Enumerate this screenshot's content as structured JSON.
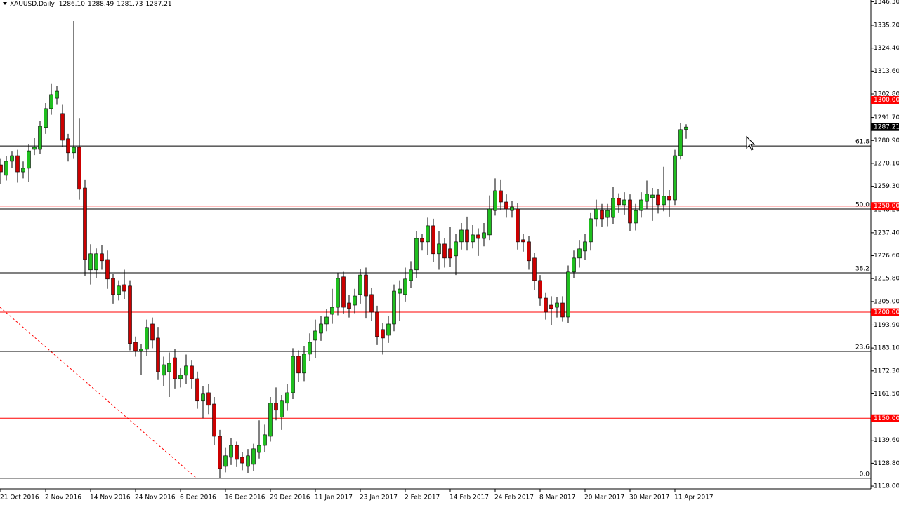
{
  "chart_data": {
    "type": "candlestick",
    "title": "XAUUSD,Daily",
    "last_quote": {
      "values": [
        1286.1,
        1288.49,
        1281.73,
        1287.21
      ],
      "value_labels": [
        "1286.10",
        "1288.49",
        "1281.73",
        "1287.21"
      ]
    },
    "categories": [
      "21 Oct 2016",
      null,
      null,
      null,
      null,
      null,
      null,
      null,
      "2 Nov 2016",
      null,
      null,
      null,
      null,
      null,
      null,
      null,
      "14 Nov 2016",
      null,
      null,
      null,
      null,
      null,
      null,
      null,
      "24 Nov 2016",
      null,
      null,
      null,
      null,
      null,
      null,
      null,
      "6 Dec 2016",
      null,
      null,
      null,
      null,
      null,
      null,
      null,
      "16 Dec 2016",
      null,
      null,
      null,
      null,
      null,
      null,
      null,
      "29 Dec 2016",
      null,
      null,
      null,
      null,
      null,
      null,
      null,
      "11 Jan 2017",
      null,
      null,
      null,
      null,
      null,
      null,
      null,
      "23 Jan 2017",
      null,
      null,
      null,
      null,
      null,
      null,
      null,
      "2 Feb 2017",
      null,
      null,
      null,
      null,
      null,
      null,
      null,
      "14 Feb 2017",
      null,
      null,
      null,
      null,
      null,
      null,
      null,
      "24 Feb 2017",
      null,
      null,
      null,
      null,
      null,
      null,
      null,
      "8 Mar 2017",
      null,
      null,
      null,
      null,
      null,
      null,
      null,
      "20 Mar 2017",
      null,
      null,
      null,
      null,
      null,
      null,
      null,
      "30 Mar 2017",
      null,
      null,
      null,
      null,
      null,
      null,
      null,
      "11 Apr 2017",
      null,
      null
    ],
    "open": [
      1269.4,
      1264.5,
      1271.1,
      1273.7,
      1266.1,
      1267.8,
      1276.7,
      1276.7,
      1287.0,
      1295.9,
      1300.8,
      1293.6,
      1281.7,
      1275.1,
      1277.7,
      1258.5,
      1219.9,
      1219.9,
      1227.5,
      1224.8,
      1215.9,
      1208.3,
      1212.9,
      1212.3,
      1185.8,
      1181.8,
      1182.5,
      1194.4,
      1187.8,
      1170.3,
      1171.9,
      1178.5,
      1168.6,
      1170.3,
      1174.6,
      1168.6,
      1158.1,
      1162.0,
      1156.7,
      1141.5,
      1127.3,
      1131.6,
      1137.2,
      1131.6,
      1127.3,
      1128.3,
      1133.9,
      1137.2,
      1141.5,
      1157.1,
      1150.5,
      1157.1,
      1162.0,
      1179.2,
      1171.3,
      1180.2,
      1186.8,
      1190.1,
      1194.4,
      1199.0,
      1202.3,
      1216.6,
      1204.3,
      1203.3,
      1208.3,
      1217.5,
      1208.3,
      1200.0,
      1191.8,
      1189.1,
      1194.4,
      1208.9,
      1208.3,
      1214.9,
      1219.9,
      1234.7,
      1233.1,
      1240.7,
      1227.5,
      1232.1,
      1229.8,
      1226.5,
      1233.1,
      1238.7,
      1233.1,
      1236.4,
      1234.7,
      1236.4,
      1247.9,
      1257.2,
      1251.9,
      1247.9,
      1248.6,
      1234.1,
      1233.1,
      1225.5,
      1214.9,
      1206.6,
      1203.3,
      1202.3,
      1204.3,
      1197.7,
      1218.9,
      1225.5,
      1228.8,
      1233.1,
      1244.0,
      1247.9,
      1244.6,
      1244.6,
      1253.6,
      1250.6,
      1252.9,
      1242.0,
      1247.9,
      1252.2,
      1253.9,
      1255.2,
      1250.6,
      1254.6,
      1252.9,
      1273.7,
      1286.1
    ],
    "high": [
      1272.5,
      1273.5,
      1276.0,
      1276.5,
      1271.0,
      1279.0,
      1282.0,
      1290.0,
      1298.5,
      1307.5,
      1306.5,
      1298.0,
      1284.0,
      1337.2,
      1291.5,
      1262.5,
      1232.0,
      1230.0,
      1231.5,
      1229.0,
      1218.0,
      1215.0,
      1220.0,
      1215.0,
      1188.5,
      1185.0,
      1196.5,
      1197.5,
      1193.0,
      1179.0,
      1181.0,
      1182.5,
      1173.5,
      1180.0,
      1177.5,
      1172.0,
      1165.0,
      1166.0,
      1160.0,
      1144.5,
      1136.0,
      1140.5,
      1139.0,
      1134.0,
      1135.5,
      1138.0,
      1149.0,
      1147.0,
      1160.0,
      1164.5,
      1161.0,
      1166.0,
      1183.0,
      1182.0,
      1184.0,
      1190.0,
      1196.5,
      1198.0,
      1201.5,
      1211.0,
      1218.5,
      1219.0,
      1208.0,
      1211.0,
      1220.5,
      1221.0,
      1211.5,
      1203.0,
      1195.0,
      1198.0,
      1213.0,
      1215.0,
      1221.0,
      1224.0,
      1238.0,
      1237.0,
      1244.5,
      1244.0,
      1238.0,
      1235.0,
      1240.0,
      1237.0,
      1242.0,
      1245.0,
      1241.0,
      1239.5,
      1242.0,
      1255.0,
      1263.0,
      1262.5,
      1255.5,
      1252.5,
      1251.5,
      1237.0,
      1236.0,
      1228.0,
      1217.5,
      1209.0,
      1207.5,
      1207.0,
      1207.5,
      1222.0,
      1229.0,
      1234.0,
      1237.0,
      1247.0,
      1253.0,
      1251.0,
      1251.0,
      1259.0,
      1256.0,
      1256.5,
      1255.5,
      1251.0,
      1256.5,
      1262.0,
      1258.5,
      1258.0,
      1268.5,
      1257.5,
      1276.5,
      1289.0,
      1288.49
    ],
    "low": [
      1260.5,
      1262.0,
      1268.0,
      1261.0,
      1263.0,
      1261.5,
      1274.0,
      1274.5,
      1284.0,
      1293.0,
      1298.0,
      1278.0,
      1271.0,
      1272.5,
      1253.0,
      1217.0,
      1213.0,
      1216.0,
      1220.0,
      1211.0,
      1204.0,
      1205.5,
      1206.0,
      1182.0,
      1179.0,
      1170.5,
      1179.5,
      1183.0,
      1168.0,
      1165.0,
      1160.0,
      1164.0,
      1164.5,
      1166.0,
      1164.0,
      1154.5,
      1150.0,
      1152.0,
      1137.5,
      1121.7,
      1124.5,
      1128.0,
      1127.0,
      1125.5,
      1124.0,
      1125.0,
      1131.0,
      1134.0,
      1139.0,
      1149.0,
      1144.5,
      1153.5,
      1159.0,
      1167.0,
      1167.5,
      1177.0,
      1178.5,
      1186.5,
      1191.0,
      1194.5,
      1198.5,
      1199.0,
      1197.5,
      1199.5,
      1204.0,
      1197.0,
      1196.0,
      1184.5,
      1180.0,
      1185.5,
      1191.0,
      1196.0,
      1205.0,
      1211.5,
      1216.0,
      1229.0,
      1227.0,
      1223.5,
      1220.0,
      1221.0,
      1221.5,
      1217.5,
      1229.5,
      1229.0,
      1230.0,
      1226.5,
      1231.0,
      1234.0,
      1245.5,
      1248.0,
      1244.5,
      1244.5,
      1229.5,
      1228.5,
      1220.0,
      1210.5,
      1203.0,
      1196.5,
      1194.0,
      1197.5,
      1195.5,
      1195.0,
      1216.0,
      1221.0,
      1224.5,
      1229.0,
      1240.5,
      1240.0,
      1240.5,
      1241.5,
      1247.0,
      1246.0,
      1238.0,
      1238.5,
      1244.5,
      1248.5,
      1243.0,
      1246.5,
      1247.5,
      1245.0,
      1250.5,
      1272.0,
      1281.73
    ],
    "close": [
      1266.1,
      1271.1,
      1273.7,
      1266.1,
      1267.8,
      1276.0,
      1277.7,
      1287.6,
      1295.9,
      1302.5,
      1304.1,
      1281.0,
      1275.1,
      1277.7,
      1257.9,
      1224.8,
      1227.5,
      1227.5,
      1224.2,
      1215.6,
      1208.3,
      1212.3,
      1209.9,
      1185.2,
      1181.8,
      1182.5,
      1192.8,
      1186.8,
      1171.9,
      1175.2,
      1175.9,
      1168.6,
      1170.3,
      1174.6,
      1168.6,
      1158.1,
      1161.4,
      1156.1,
      1141.5,
      1126.3,
      1132.3,
      1137.2,
      1130.6,
      1128.9,
      1132.3,
      1135.6,
      1137.2,
      1142.2,
      1157.1,
      1153.8,
      1158.1,
      1162.0,
      1179.2,
      1171.3,
      1180.2,
      1185.8,
      1191.1,
      1194.4,
      1197.7,
      1202.3,
      1215.9,
      1202.3,
      1201.7,
      1207.6,
      1217.5,
      1207.6,
      1200.0,
      1188.5,
      1187.8,
      1194.4,
      1209.9,
      1210.9,
      1215.6,
      1219.9,
      1234.7,
      1233.1,
      1240.7,
      1227.5,
      1232.1,
      1225.5,
      1225.5,
      1233.1,
      1238.7,
      1233.1,
      1236.4,
      1234.7,
      1237.4,
      1248.6,
      1257.2,
      1251.9,
      1248.6,
      1249.6,
      1233.1,
      1233.1,
      1224.2,
      1214.9,
      1206.6,
      1200.0,
      1201.7,
      1204.3,
      1197.7,
      1218.9,
      1225.5,
      1229.8,
      1233.1,
      1244.0,
      1248.6,
      1244.0,
      1247.9,
      1253.6,
      1250.6,
      1252.9,
      1242.0,
      1247.9,
      1252.9,
      1255.6,
      1255.2,
      1250.6,
      1254.6,
      1252.9,
      1273.7,
      1286.0,
      1287.21
    ],
    "up_color": "#1fbf1f",
    "down_color": "#cc0000",
    "wick_color": "#000000",
    "ylim": [
      1116.7,
      1347.1
    ],
    "yticks": [
      {
        "value": 1346.3,
        "label": "1346.30"
      },
      {
        "value": 1335.2,
        "label": "1335.20"
      },
      {
        "value": 1324.4,
        "label": "1324.40"
      },
      {
        "value": 1313.6,
        "label": "1313.60"
      },
      {
        "value": 1302.8,
        "label": "1302.80"
      },
      {
        "value": 1291.7,
        "label": "1291.70"
      },
      {
        "value": 1280.9,
        "label": "1280.90"
      },
      {
        "value": 1270.1,
        "label": "1270.10"
      },
      {
        "value": 1259.3,
        "label": "1259.30"
      },
      {
        "value": 1248.2,
        "label": "1248.20"
      },
      {
        "value": 1237.4,
        "label": "1237.40"
      },
      {
        "value": 1226.6,
        "label": "1226.60"
      },
      {
        "value": 1215.8,
        "label": "1215.80"
      },
      {
        "value": 1205,
        "label": "1205.00"
      },
      {
        "value": 1193.9,
        "label": "1193.90"
      },
      {
        "value": 1183.1,
        "label": "1183.10"
      },
      {
        "value": 1172.3,
        "label": "1172.30"
      },
      {
        "value": 1161.5,
        "label": "1161.50"
      },
      {
        "value": 1139.6,
        "label": "1139.60"
      },
      {
        "value": 1128.8,
        "label": "1128.80"
      },
      {
        "value": 1118,
        "label": "1118.00"
      }
    ],
    "levels": [
      {
        "value": 1300,
        "label": "1300.00",
        "color": "#ff0000"
      },
      {
        "value": 1250,
        "label": "1250.00",
        "color": "#ff0000"
      },
      {
        "value": 1200,
        "label": "1200.00",
        "color": "#ff0000"
      },
      {
        "value": 1150,
        "label": "1150.00",
        "color": "#ff0000"
      }
    ],
    "fib_levels": [
      {
        "value": 1278.3,
        "label": "61.8"
      },
      {
        "value": 1248.6,
        "label": "50.0"
      },
      {
        "value": 1218.5,
        "label": "38.2"
      },
      {
        "value": 1181.5,
        "label": "23.6"
      },
      {
        "value": 1121.7,
        "label": "0.0"
      }
    ],
    "fib_color": "#000000"
  }
}
